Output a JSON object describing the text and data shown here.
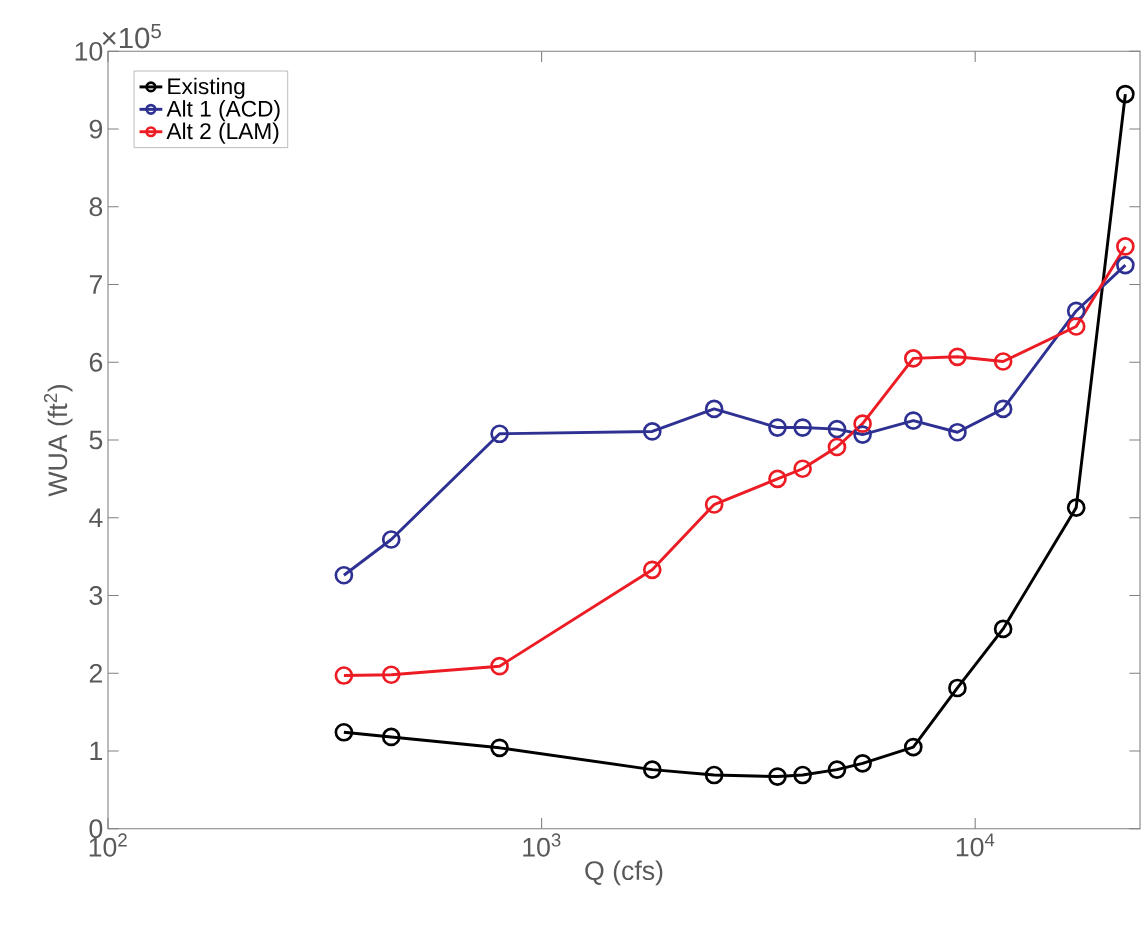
{
  "chart_data": {
    "type": "line",
    "xlabel": "Q (cfs)",
    "ylabel": "WUA (ft$^{2}$)",
    "annotations": [
      "×10$^{5}$"
    ],
    "x": [
      350,
      450,
      800,
      1800,
      2500,
      3500,
      4000,
      4800,
      5500,
      7200,
      9100,
      11600,
      17100,
      22200
    ],
    "series": [
      {
        "name": "Existing",
        "color": "#000000",
        "values": [
          1.24,
          1.18,
          1.04,
          0.76,
          0.69,
          0.67,
          0.69,
          0.76,
          0.84,
          1.05,
          1.81,
          2.57,
          4.13,
          9.45
        ]
      },
      {
        "name": "Alt 1 (ACD)",
        "color": "#2e3192",
        "values": [
          3.26,
          3.72,
          5.08,
          5.11,
          5.4,
          5.16,
          5.16,
          5.14,
          5.07,
          5.25,
          5.1,
          5.4,
          6.66,
          7.25
        ]
      },
      {
        "name": "Alt 2 (LAM)",
        "color": "#ed1c24",
        "values": [
          1.97,
          1.98,
          2.09,
          3.33,
          4.17,
          4.5,
          4.63,
          4.91,
          5.21,
          6.05,
          6.07,
          6.01,
          6.46,
          7.49
        ]
      }
    ],
    "log": "x",
    "xlim": [
      100,
      24000
    ],
    "ylim": [
      0,
      10
    ],
    "xticks": [
      {
        "value": 100,
        "label": "10$^{2}$"
      },
      {
        "value": 1000,
        "label": "10$^{3}$"
      },
      {
        "value": 10000,
        "label": "10$^{4}$"
      }
    ],
    "yticks": [
      0,
      1,
      2,
      3,
      4,
      5,
      6,
      7,
      8,
      9,
      10
    ],
    "legend": "top left",
    "marker": "circle",
    "line_style": "solid"
  }
}
